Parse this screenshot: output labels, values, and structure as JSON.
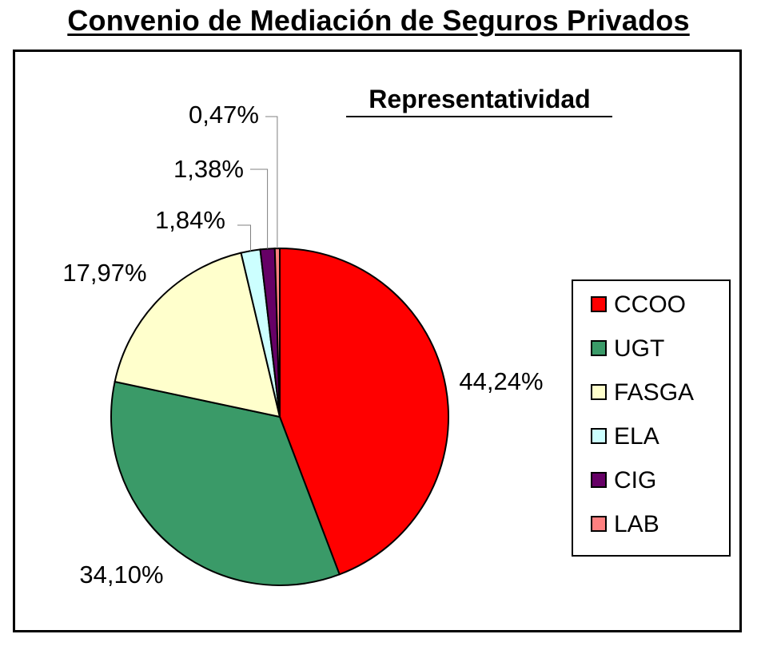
{
  "page_title": "Convenio de Mediación de Seguros Privados",
  "chart_data": {
    "type": "pie",
    "title": "Representatividad",
    "categories": [
      "CCOO",
      "UGT",
      "FASGA",
      "ELA",
      "CIG",
      "LAB"
    ],
    "values": [
      44.24,
      34.1,
      17.97,
      1.84,
      1.38,
      0.47
    ],
    "labels": [
      "44,24%",
      "34,10%",
      "17,97%",
      "1,84%",
      "1,38%",
      "0,47%"
    ],
    "colors": [
      "#ff0000",
      "#3a9a68",
      "#ffffcc",
      "#ccffff",
      "#660066",
      "#ff8080"
    ],
    "legend_position": "right",
    "start_angle": "top",
    "direction": "clockwise"
  }
}
